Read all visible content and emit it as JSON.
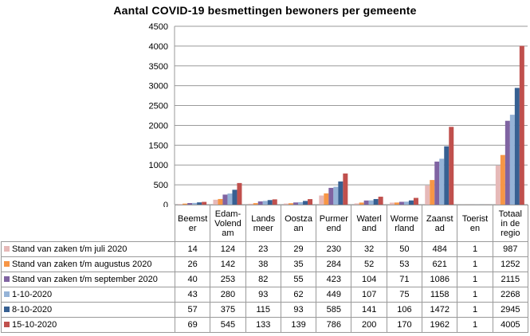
{
  "chart_data": {
    "type": "bar",
    "title": "Aantal COVID-19  besmettingen bewoners per gemeente",
    "categories": [
      "Beemster",
      "Edam-Volendam",
      "Landsmeer",
      "Oostzaan",
      "Purmerend",
      "Waterland",
      "Wormerland",
      "Zaanstad",
      "Toeristen",
      "Totaal in de regio"
    ],
    "ylim": [
      0,
      4500
    ],
    "yticks": [
      "0",
      "500",
      "1000",
      "1500",
      "2000",
      "2500",
      "3000",
      "3500",
      "4000",
      "4500"
    ],
    "legend": "table-below",
    "series": [
      {
        "name": "Stand van zaken t/m juli 2020",
        "color": "#e6b9b8",
        "values": [
          14,
          124,
          23,
          29,
          230,
          32,
          50,
          484,
          1,
          987
        ]
      },
      {
        "name": "Stand van zaken t/m augustus 2020",
        "color": "#f79646",
        "values": [
          26,
          142,
          38,
          35,
          284,
          52,
          53,
          621,
          1,
          1252
        ]
      },
      {
        "name": "Stand van zaken t/m september 2020",
        "color": "#8064a2",
        "values": [
          40,
          253,
          82,
          55,
          423,
          104,
          71,
          1086,
          1,
          2115
        ]
      },
      {
        "name": "1-10-2020",
        "color": "#95b3d7",
        "values": [
          43,
          280,
          93,
          62,
          449,
          107,
          75,
          1158,
          1,
          2268
        ]
      },
      {
        "name": "8-10-2020",
        "color": "#376092",
        "values": [
          57,
          375,
          115,
          93,
          585,
          141,
          106,
          1472,
          1,
          2945
        ]
      },
      {
        "name": "15-10-2020",
        "color": "#c0504d",
        "values": [
          69,
          545,
          133,
          139,
          786,
          200,
          170,
          1962,
          1,
          4005
        ]
      }
    ],
    "table_headers": [
      [
        "Beemst",
        "er"
      ],
      [
        "Edam-",
        "Volend",
        "am"
      ],
      [
        "Lands",
        "meer"
      ],
      [
        "Oostza",
        "an"
      ],
      [
        "Purmer",
        "end"
      ],
      [
        "Waterl",
        "and"
      ],
      [
        "Worme",
        "rland"
      ],
      [
        "Zaanst",
        "ad"
      ],
      [
        "Toerist",
        "en"
      ],
      [
        "Totaal",
        "in de",
        "regio"
      ]
    ]
  },
  "colors": {
    "gridline": "#9a9a9a",
    "axis": "#9a9a9a"
  }
}
